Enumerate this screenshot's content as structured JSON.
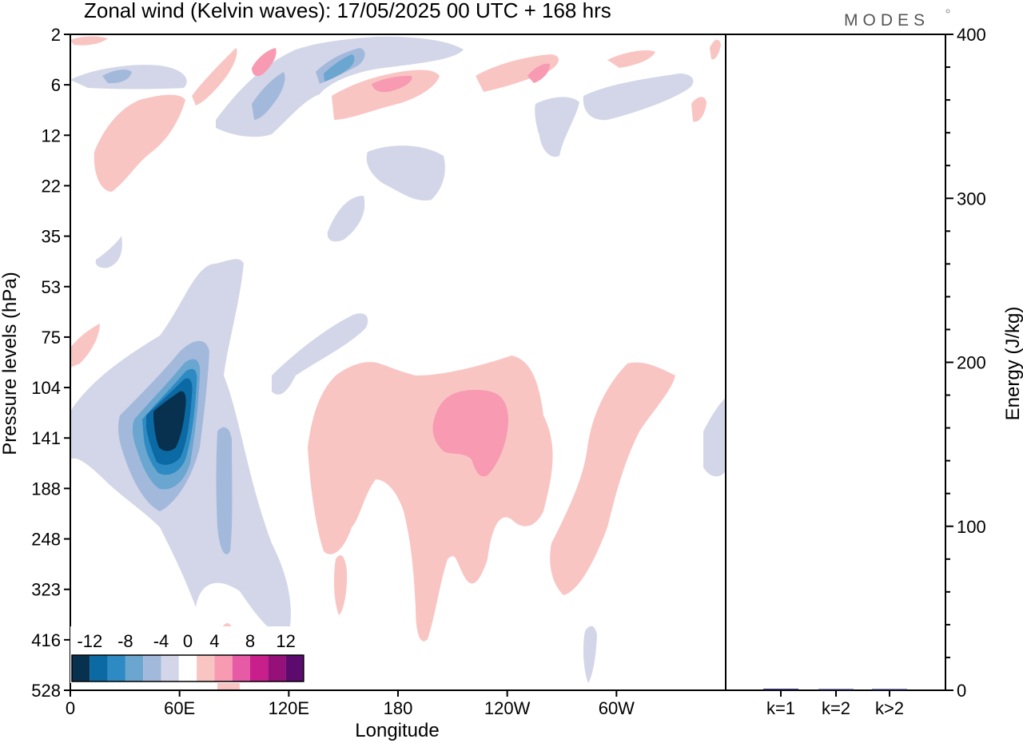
{
  "header": {
    "title": "Zonal wind (Kelvin waves):  17/05/2025  00 UTC  + 168 hrs",
    "logo": "MODES"
  },
  "chart_data": [
    {
      "type": "heatmap",
      "title": "Zonal wind (Kelvin waves):  17/05/2025  00 UTC  + 168 hrs",
      "xlabel": "Longitude",
      "ylabel": "Pressure levels (hPa)",
      "x_ticks": [
        "0",
        "60E",
        "120E",
        "180",
        "120W",
        "60W"
      ],
      "x_tick_degrees": [
        0,
        60,
        120,
        180,
        240,
        300
      ],
      "xlim": [
        0,
        360
      ],
      "y_ticks": [
        "2",
        "6",
        "12",
        "22",
        "35",
        "53",
        "75",
        "104",
        "141",
        "188",
        "248",
        "323",
        "416",
        "528"
      ],
      "y_scale": "model levels (non-linear)",
      "colorbar": {
        "labels": [
          "-12",
          "-8",
          "-4",
          "0",
          "4",
          "8",
          "12"
        ],
        "levels": [
          -14,
          -12,
          -10,
          -8,
          -6,
          -4,
          -2,
          2,
          4,
          6,
          8,
          10,
          12,
          14
        ],
        "colors": [
          "#08304f",
          "#0b6aa3",
          "#2e8ac2",
          "#6aa6cf",
          "#a3b9dc",
          "#d3d6e8",
          "#ffffff",
          "#f9c5c3",
          "#f79ab2",
          "#e75aa6",
          "#c81f8c",
          "#951078",
          "#5c0a6e"
        ],
        "placement": "bottom-left"
      },
      "features": [
        {
          "label": "negative core",
          "lon_center": 50,
          "level_center": "141",
          "min_value": -12
        },
        {
          "label": "positive core",
          "lon_center": 205,
          "level_center": "141",
          "max_value": 6
        },
        {
          "label": "upper negative band",
          "lon_range": [
            30,
            170
          ],
          "level_range": [
            "2",
            "12"
          ],
          "min_value": -6
        },
        {
          "label": "upper positive band",
          "lon_range": [
            130,
            220
          ],
          "level_range": [
            "2",
            "12"
          ],
          "max_value": 6
        }
      ]
    },
    {
      "type": "bar",
      "categories": [
        "k=1",
        "k=2",
        "k>2"
      ],
      "values": [
        0.9,
        0.2,
        0.5
      ],
      "ylabel": "Energy (J/kg)",
      "ylim": [
        0,
        400
      ],
      "y_ticks": [
        0,
        100,
        200,
        300,
        400
      ],
      "bar_color": "#1a1a4e"
    }
  ]
}
